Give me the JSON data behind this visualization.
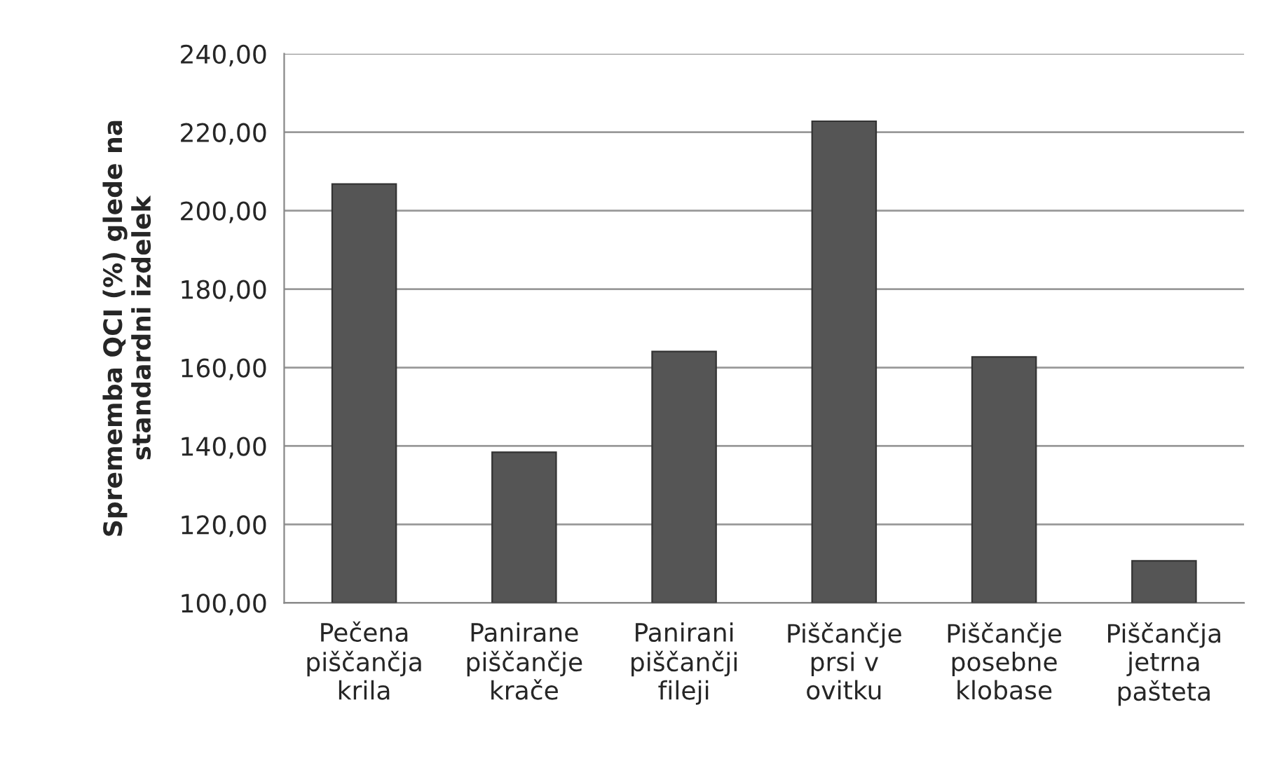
{
  "chart_data": {
    "type": "bar",
    "ylabel": "Sprememba QCI (%) glede na\nstandardni izdelek",
    "categories": [
      "Pečena\npiščančja\nkrila",
      "Panirane\npiščančje\nkrače",
      "Panirani\npiščančji\nfileji",
      "Piščančje\nprsi v\novitku",
      "Piščančje\nposebne\nklobase",
      "Piščančja\njetrna\npašteta"
    ],
    "values": [
      206.8,
      138.4,
      164.1,
      222.8,
      162.7,
      110.7
    ],
    "color": "#555555",
    "ylim": [
      100,
      240
    ],
    "yticks": [
      {
        "value": 100,
        "label": "100,00"
      },
      {
        "value": 120,
        "label": "120,00"
      },
      {
        "value": 140,
        "label": "140,00"
      },
      {
        "value": 160,
        "label": "160,00"
      },
      {
        "value": 180,
        "label": "180,00"
      },
      {
        "value": 200,
        "label": "200,00"
      },
      {
        "value": 220,
        "label": "220,00"
      },
      {
        "value": 240,
        "label": "240,00"
      }
    ],
    "grid": "y",
    "legend": false
  }
}
